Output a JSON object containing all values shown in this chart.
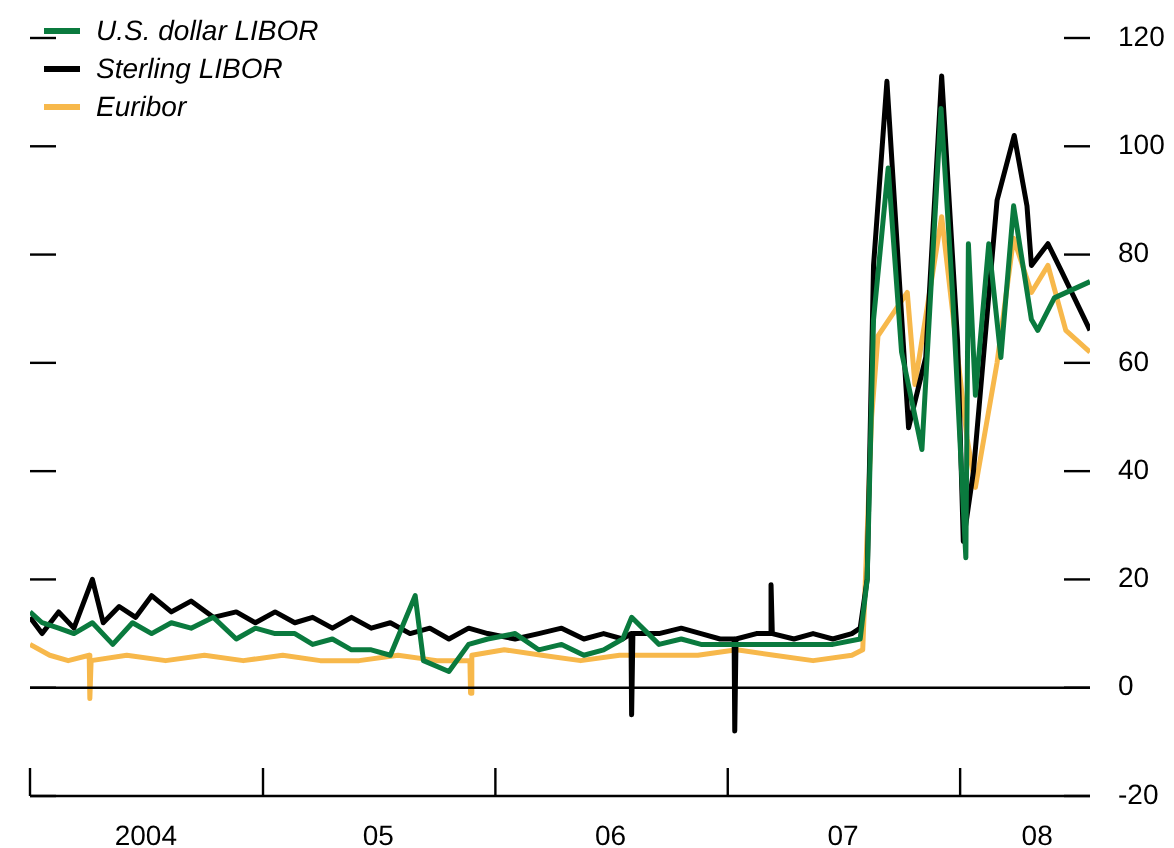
{
  "chart_data": {
    "type": "line",
    "xlim": [
      "2004-01-01",
      "2008-07-23"
    ],
    "xticks": [
      {
        "value": "2004-01-01",
        "label": null
      },
      {
        "value": "2004-07-01",
        "label": "2004"
      },
      {
        "value": "2005-01-01",
        "label": null
      },
      {
        "value": "2005-07-01",
        "label": "05"
      },
      {
        "value": "2006-01-01",
        "label": null
      },
      {
        "value": "2006-07-01",
        "label": "06"
      },
      {
        "value": "2007-01-01",
        "label": null
      },
      {
        "value": "2007-07-01",
        "label": "07"
      },
      {
        "value": "2008-01-01",
        "label": null
      },
      {
        "value": "2008-05-01",
        "label": "08"
      }
    ],
    "ylim": [
      -20,
      120
    ],
    "yticks": [
      -20,
      0,
      20,
      40,
      60,
      80,
      100,
      120
    ],
    "legend": "top left",
    "ref_lines": [
      {
        "axis": "y",
        "value": 0,
        "color": "#000000"
      }
    ],
    "series": [
      {
        "name": "U.S. dollar LIBOR",
        "color": "#0a7a3e",
        "x": [
          "2004-01-01",
          "2004-01-20",
          "2004-02-15",
          "2004-03-10",
          "2004-04-08",
          "2004-05-10",
          "2004-06-10",
          "2004-07-10",
          "2004-08-10",
          "2004-09-10",
          "2004-10-15",
          "2004-11-20",
          "2004-12-20",
          "2005-01-20",
          "2005-02-20",
          "2005-03-20",
          "2005-04-20",
          "2005-05-20",
          "2005-06-20",
          "2005-07-20",
          "2005-08-28",
          "2005-09-10",
          "2005-10-20",
          "2005-11-20",
          "2005-12-20",
          "2006-02-01",
          "2006-03-10",
          "2006-04-15",
          "2006-05-20",
          "2006-06-20",
          "2006-07-20",
          "2006-08-03",
          "2006-09-15",
          "2006-10-20",
          "2006-11-20",
          "2006-12-20",
          "2007-02-15",
          "2007-04-15",
          "2007-06-15",
          "2007-07-28",
          "2007-08-08",
          "2007-08-18",
          "2007-09-10",
          "2007-10-01",
          "2007-11-02",
          "2007-12-02",
          "2007-12-20",
          "2008-01-10",
          "2008-01-14",
          "2008-01-25",
          "2008-02-15",
          "2008-03-05",
          "2008-03-25",
          "2008-04-22",
          "2008-05-02",
          "2008-05-28",
          "2008-07-23"
        ],
        "values": [
          14,
          12,
          11,
          10,
          12,
          8,
          12,
          10,
          12,
          11,
          13,
          9,
          11,
          10,
          10,
          8,
          9,
          7,
          7,
          6,
          17,
          5,
          3,
          8,
          9,
          10,
          7,
          8,
          6,
          7,
          9,
          13,
          8,
          9,
          8,
          8,
          8,
          8,
          8,
          9,
          20,
          68,
          96,
          62,
          44,
          107,
          73,
          24,
          82,
          54,
          82,
          61,
          89,
          68,
          66,
          72,
          75
        ]
      },
      {
        "name": "Sterling LIBOR",
        "color": "#000000",
        "x": [
          "2004-01-01",
          "2004-01-20",
          "2004-02-15",
          "2004-03-10",
          "2004-04-08",
          "2004-04-25",
          "2004-05-20",
          "2004-06-15",
          "2004-07-10",
          "2004-08-10",
          "2004-09-10",
          "2004-10-15",
          "2004-11-20",
          "2004-12-20",
          "2005-01-20",
          "2005-02-20",
          "2005-03-20",
          "2005-04-20",
          "2005-05-20",
          "2005-06-20",
          "2005-07-20",
          "2005-08-20",
          "2005-09-20",
          "2005-10-20",
          "2005-11-20",
          "2005-12-20",
          "2006-02-01",
          "2006-03-10",
          "2006-04-15",
          "2006-05-20",
          "2006-06-20",
          "2006-07-20",
          "2006-08-02",
          "2006-08-03",
          "2006-08-05",
          "2006-09-15",
          "2006-10-20",
          "2006-11-20",
          "2006-12-20",
          "2007-01-11",
          "2007-01-12",
          "2007-01-14",
          "2007-02-15",
          "2007-03-09",
          "2007-03-10",
          "2007-03-12",
          "2007-04-15",
          "2007-05-15",
          "2007-06-15",
          "2007-07-15",
          "2007-07-28",
          "2007-08-08",
          "2007-08-18",
          "2007-09-08",
          "2007-10-12",
          "2007-11-08",
          "2007-12-03",
          "2007-12-28",
          "2008-01-06",
          "2008-01-22",
          "2008-02-28",
          "2008-03-26",
          "2008-04-15",
          "2008-04-22",
          "2008-05-18",
          "2008-06-08",
          "2008-07-23"
        ],
        "values": [
          13,
          10,
          14,
          11,
          20,
          12,
          15,
          13,
          17,
          14,
          16,
          13,
          14,
          12,
          14,
          12,
          13,
          11,
          13,
          11,
          12,
          10,
          11,
          9,
          11,
          10,
          9,
          10,
          11,
          9,
          10,
          9,
          10,
          -5,
          10,
          10,
          11,
          10,
          9,
          9,
          -8,
          9,
          10,
          10,
          19,
          10,
          9,
          10,
          9,
          10,
          11,
          20,
          78,
          112,
          48,
          61,
          113,
          64,
          27,
          40,
          90,
          102,
          89,
          78,
          82,
          77,
          66
        ]
      },
      {
        "name": "Euribor",
        "color": "#f7b84b",
        "x": [
          "2004-01-01",
          "2004-02-01",
          "2004-03-01",
          "2004-04-03",
          "2004-04-04",
          "2004-04-06",
          "2004-06-01",
          "2004-08-01",
          "2004-10-01",
          "2004-12-01",
          "2005-02-01",
          "2005-04-01",
          "2005-06-01",
          "2005-08-01",
          "2005-10-01",
          "2005-11-22",
          "2005-11-23",
          "2005-11-25",
          "2006-01-15",
          "2006-03-15",
          "2006-05-15",
          "2006-07-15",
          "2006-09-15",
          "2006-11-15",
          "2007-01-15",
          "2007-03-15",
          "2007-05-15",
          "2007-07-15",
          "2007-08-01",
          "2007-08-15",
          "2007-08-25",
          "2007-10-10",
          "2007-10-22",
          "2007-12-03",
          "2008-01-12",
          "2008-01-25",
          "2008-02-28",
          "2008-03-25",
          "2008-04-22",
          "2008-05-18",
          "2008-06-15",
          "2008-07-23"
        ],
        "values": [
          8,
          6,
          5,
          6,
          -2,
          5,
          6,
          5,
          6,
          5,
          6,
          5,
          5,
          6,
          5,
          5,
          -1,
          6,
          7,
          6,
          5,
          6,
          6,
          6,
          7,
          6,
          5,
          6,
          7,
          50,
          65,
          73,
          56,
          87,
          46,
          37,
          60,
          83,
          73,
          78,
          66,
          62
        ]
      }
    ]
  }
}
